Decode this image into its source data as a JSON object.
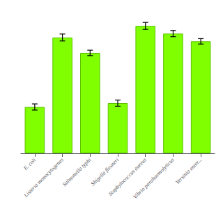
{
  "chart_data": {
    "type": "bar",
    "categories": [
      "E. coli",
      "Listeria monocytogenes",
      "Salmonella typhi",
      "Shigella flexneri",
      "Staphylococcus aureus",
      "Vibrio parahaemolyticus",
      "Yersinia enter..."
    ],
    "values": [
      12,
      30,
      26,
      13,
      33,
      31,
      29
    ],
    "errors": [
      0.8,
      0.9,
      0.7,
      0.8,
      0.9,
      0.8,
      0.7
    ],
    "color": "#7FFF00",
    "ylim": [
      0,
      37
    ],
    "grid": false,
    "tick_labels": "x"
  }
}
